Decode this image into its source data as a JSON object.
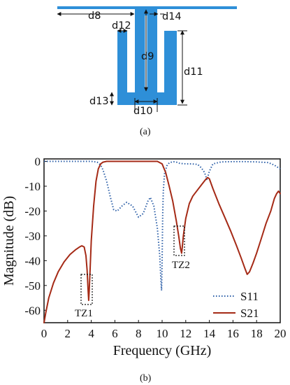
{
  "diagram": {
    "labels": {
      "d8": "d8",
      "d9": "d9",
      "d10": "d10",
      "d11": "d11",
      "d12": "d12",
      "d13": "d13",
      "d14": "d14"
    },
    "caption": "(a)",
    "colors": {
      "conductor": "#2e8fd8",
      "line": "#111111"
    }
  },
  "chart_caption": "(b)",
  "chart_data": {
    "type": "line",
    "xlabel": "Frequency (GHz)",
    "ylabel": "Magnitude (dB)",
    "xlim": [
      0,
      20
    ],
    "ylim": [
      -65,
      1
    ],
    "xticks": [
      0,
      2,
      4,
      6,
      8,
      10,
      12,
      14,
      16,
      18,
      20
    ],
    "yticks": [
      0,
      -10,
      -20,
      -30,
      -40,
      -50,
      -60
    ],
    "grid": false,
    "legend_position": "bottom-right",
    "series": [
      {
        "name": "S11",
        "color": "#2b5ea7",
        "style": "dotted",
        "x": [
          0,
          0.5,
          1,
          2,
          3,
          4,
          4.5,
          4.8,
          5.0,
          5.3,
          5.6,
          5.9,
          6.2,
          6.6,
          7.0,
          7.5,
          8.0,
          8.4,
          8.8,
          9.0,
          9.3,
          9.6,
          9.8,
          9.9,
          9.95,
          10.0,
          10.05,
          10.1,
          10.2,
          10.4,
          10.6,
          10.9,
          11.2,
          11.5,
          12.0,
          12.5,
          13.0,
          13.3,
          13.6,
          13.8,
          14.0,
          14.3,
          15,
          16,
          17,
          18,
          19,
          19.5,
          20
        ],
        "y": [
          0,
          0,
          0,
          0,
          0,
          0,
          -0.3,
          -1.5,
          -3.5,
          -8,
          -14,
          -19.5,
          -20,
          -18,
          -16.5,
          -18,
          -22.5,
          -21,
          -16,
          -14.5,
          -18,
          -27,
          -38,
          -48,
          -52,
          -40,
          -22,
          -12,
          -5,
          -1.8,
          -0.6,
          -0.1,
          -0.3,
          -0.8,
          -1,
          -1,
          -1.2,
          -2.5,
          -4.5,
          -7.5,
          -4,
          -1,
          -0.2,
          -0.1,
          -0.1,
          -0.2,
          -0.5,
          -1.5,
          -3
        ]
      },
      {
        "name": "S21",
        "color": "#a52a16",
        "style": "solid",
        "x": [
          0,
          0.15,
          0.4,
          0.8,
          1.2,
          1.7,
          2.2,
          2.7,
          3.0,
          3.2,
          3.4,
          3.55,
          3.65,
          3.72,
          3.78,
          3.83,
          3.88,
          4.0,
          4.2,
          4.4,
          4.6,
          4.8,
          5.0,
          5.3,
          5.6,
          6,
          7,
          8,
          9,
          9.6,
          10.0,
          10.3,
          10.6,
          10.9,
          11.2,
          11.4,
          11.55,
          11.65,
          11.7,
          11.8,
          12.0,
          12.3,
          12.6,
          13.0,
          13.4,
          13.7,
          13.85,
          14.0,
          14.3,
          14.8,
          15.3,
          15.8,
          16.3,
          16.7,
          17.0,
          17.2,
          17.4,
          17.7,
          18.0,
          18.4,
          18.8,
          19.2,
          19.5,
          19.7,
          19.85,
          20
        ],
        "y": [
          -65,
          -61,
          -55,
          -49,
          -44.5,
          -40.5,
          -37.5,
          -35.5,
          -34.5,
          -34,
          -34.5,
          -38,
          -44,
          -51,
          -56,
          -52,
          -46,
          -32,
          -18,
          -8,
          -3,
          -1,
          -0.3,
          0,
          0,
          0,
          0,
          0,
          0,
          0,
          -1,
          -4.5,
          -10,
          -16,
          -24,
          -30,
          -35,
          -37,
          -35,
          -30,
          -23,
          -17,
          -14,
          -11.5,
          -9,
          -7.2,
          -6.5,
          -7,
          -11,
          -17,
          -22.5,
          -28,
          -34,
          -39,
          -43,
          -45.5,
          -44.5,
          -41,
          -37,
          -31,
          -25,
          -20,
          -15,
          -13,
          -12,
          -13
        ]
      }
    ],
    "annotations": [
      "TZ1",
      "TZ2"
    ]
  }
}
